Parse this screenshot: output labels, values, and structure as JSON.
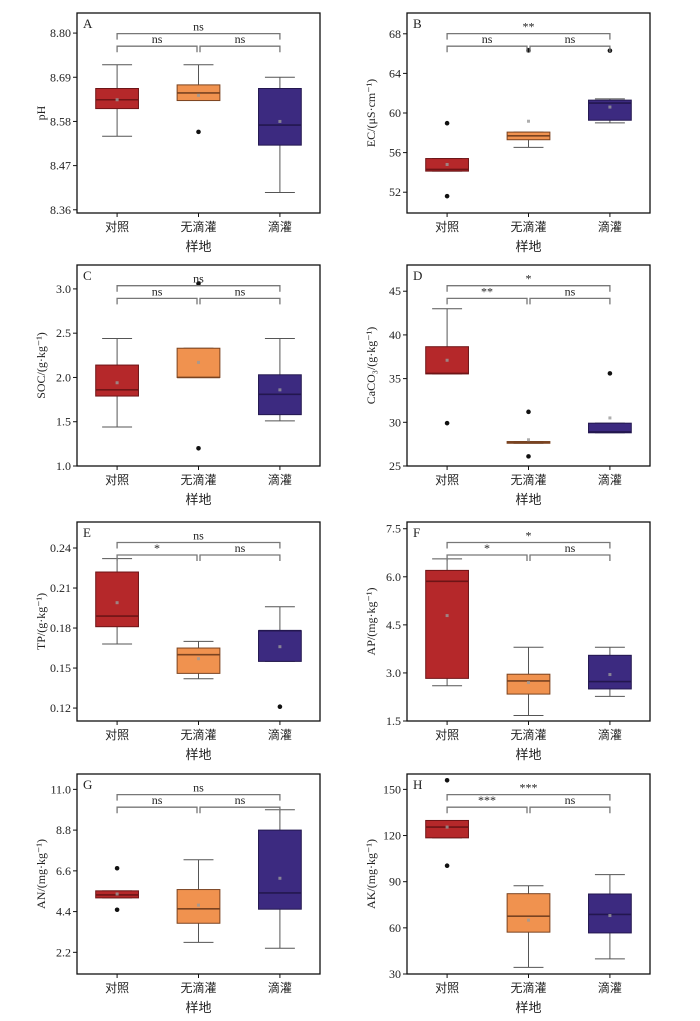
{
  "chart_data": [
    {
      "type": "box",
      "panel_label": "A",
      "ylabel": "pH",
      "xlabel": "样地",
      "categories": [
        "对照",
        "无滴灌",
        "滴灌"
      ],
      "ylim": [
        8.352,
        8.85
      ],
      "yticks": [
        8.36,
        8.47,
        8.58,
        8.69,
        8.8
      ],
      "tick_decimals": 2,
      "boxes": [
        {
          "whisker_low": 8.543,
          "q1": 8.612,
          "median": 8.634,
          "q3": 8.662,
          "whisker_high": 8.721,
          "mean": 8.634,
          "outliers": []
        },
        {
          "whisker_low": 8.632,
          "q1": 8.632,
          "median": 8.651,
          "q3": 8.671,
          "whisker_high": 8.721,
          "mean": 8.645,
          "outliers": [
            8.554
          ]
        },
        {
          "whisker_low": 8.403,
          "q1": 8.521,
          "median": 8.571,
          "q3": 8.662,
          "whisker_high": 8.69,
          "mean": 8.58,
          "outliers": []
        }
      ],
      "comparisons": [
        {
          "pair": [
            1,
            2
          ],
          "label": "ns"
        },
        {
          "pair": [
            2,
            3
          ],
          "label": "ns"
        },
        {
          "pair": [
            1,
            3
          ],
          "label": "ns"
        }
      ]
    },
    {
      "type": "box",
      "panel_label": "B",
      "ylabel": "EC/(μS·cm⁻¹)",
      "xlabel": "样地",
      "categories": [
        "对照",
        "无滴灌",
        "滴灌"
      ],
      "ylim": [
        49.9,
        70.1
      ],
      "yticks": [
        52,
        56,
        60,
        64,
        68
      ],
      "tick_decimals": 0,
      "boxes": [
        {
          "whisker_low": 54.13,
          "q1": 54.13,
          "median": 54.3,
          "q3": 55.4,
          "whisker_high": 55.4,
          "mean": 54.8,
          "outliers": [
            58.97,
            51.6
          ]
        },
        {
          "whisker_low": 56.53,
          "q1": 57.3,
          "median": 57.7,
          "q3": 58.07,
          "whisker_high": 58.07,
          "mean": 59.17,
          "outliers": [
            66.33
          ]
        },
        {
          "whisker_low": 59.0,
          "q1": 59.27,
          "median": 61.0,
          "q3": 61.3,
          "whisker_high": 61.43,
          "mean": 60.6,
          "outliers": [
            66.3
          ]
        }
      ],
      "comparisons": [
        {
          "pair": [
            1,
            2
          ],
          "label": "ns"
        },
        {
          "pair": [
            2,
            3
          ],
          "label": "ns"
        },
        {
          "pair": [
            1,
            3
          ],
          "label": "**"
        }
      ]
    },
    {
      "type": "box",
      "panel_label": "C",
      "ylabel": "SOC/(g·kg⁻¹)",
      "xlabel": "样地",
      "categories": [
        "对照",
        "无滴灌",
        "滴灌"
      ],
      "ylim": [
        1.0,
        3.27
      ],
      "yticks": [
        1.0,
        1.5,
        2.0,
        2.5,
        3.0
      ],
      "tick_decimals": 1,
      "boxes": [
        {
          "whisker_low": 1.44,
          "q1": 1.79,
          "median": 1.86,
          "q3": 2.14,
          "whisker_high": 2.44,
          "mean": 1.94,
          "outliers": []
        },
        {
          "whisker_low": 2.0,
          "q1": 2.0,
          "median": 2.0,
          "q3": 2.33,
          "whisker_high": 2.33,
          "mean": 2.17,
          "outliers": [
            3.06,
            1.2
          ]
        },
        {
          "whisker_low": 1.51,
          "q1": 1.58,
          "median": 1.81,
          "q3": 2.03,
          "whisker_high": 2.44,
          "mean": 1.86,
          "outliers": []
        }
      ],
      "comparisons": [
        {
          "pair": [
            1,
            2
          ],
          "label": "ns"
        },
        {
          "pair": [
            2,
            3
          ],
          "label": "ns"
        },
        {
          "pair": [
            1,
            3
          ],
          "label": "ns"
        }
      ]
    },
    {
      "type": "box",
      "panel_label": "D",
      "ylabel": "CaCO₃/(g·kg⁻¹)",
      "xlabel": "样地",
      "categories": [
        "对照",
        "无滴灌",
        "滴灌"
      ],
      "ylim": [
        25,
        48
      ],
      "yticks": [
        25,
        30,
        35,
        40,
        45
      ],
      "tick_decimals": 0,
      "boxes": [
        {
          "whisker_low": 35.54,
          "q1": 35.54,
          "median": 35.6,
          "q3": 38.65,
          "whisker_high": 43.0,
          "mean": 37.1,
          "outliers": [
            29.9
          ]
        },
        {
          "whisker_low": 27.6,
          "q1": 27.6,
          "median": 27.7,
          "q3": 27.8,
          "whisker_high": 27.8,
          "mean": 28.0,
          "outliers": [
            31.2,
            26.1
          ]
        },
        {
          "whisker_low": 28.8,
          "q1": 28.8,
          "median": 28.9,
          "q3": 29.9,
          "whisker_high": 29.9,
          "mean": 30.5,
          "outliers": [
            35.6
          ]
        }
      ],
      "comparisons": [
        {
          "pair": [
            1,
            2
          ],
          "label": "**"
        },
        {
          "pair": [
            2,
            3
          ],
          "label": "ns"
        },
        {
          "pair": [
            1,
            3
          ],
          "label": "*"
        }
      ]
    },
    {
      "type": "box",
      "panel_label": "E",
      "ylabel": "TP/(g·kg⁻¹)",
      "xlabel": "样地",
      "categories": [
        "对照",
        "无滴灌",
        "滴灌"
      ],
      "ylim": [
        0.1103,
        0.2595
      ],
      "yticks": [
        0.12,
        0.15,
        0.18,
        0.21,
        0.24
      ],
      "tick_decimals": 2,
      "boxes": [
        {
          "whisker_low": 0.168,
          "q1": 0.181,
          "median": 0.189,
          "q3": 0.222,
          "whisker_high": 0.232,
          "mean": 0.199,
          "outliers": []
        },
        {
          "whisker_low": 0.142,
          "q1": 0.146,
          "median": 0.16,
          "q3": 0.165,
          "whisker_high": 0.17,
          "mean": 0.157,
          "outliers": []
        },
        {
          "whisker_low": 0.155,
          "q1": 0.155,
          "median": 0.178,
          "q3": 0.178,
          "whisker_high": 0.196,
          "mean": 0.166,
          "outliers": [
            0.121
          ]
        }
      ],
      "comparisons": [
        {
          "pair": [
            1,
            2
          ],
          "label": "*"
        },
        {
          "pair": [
            2,
            3
          ],
          "label": "ns"
        },
        {
          "pair": [
            1,
            3
          ],
          "label": "ns"
        }
      ]
    },
    {
      "type": "box",
      "panel_label": "F",
      "ylabel": "AP/(mg·kg⁻¹)",
      "xlabel": "样地",
      "categories": [
        "对照",
        "无滴灌",
        "滴灌"
      ],
      "ylim": [
        1.5,
        7.71
      ],
      "yticks": [
        1.5,
        3.0,
        4.5,
        6.0,
        7.5
      ],
      "tick_decimals": 1,
      "boxes": [
        {
          "whisker_low": 2.6,
          "q1": 2.83,
          "median": 5.86,
          "q3": 6.2,
          "whisker_high": 6.56,
          "mean": 4.79,
          "outliers": []
        },
        {
          "whisker_low": 1.67,
          "q1": 2.34,
          "median": 2.75,
          "q3": 2.96,
          "whisker_high": 3.8,
          "mean": 2.7,
          "outliers": []
        },
        {
          "whisker_low": 2.27,
          "q1": 2.5,
          "median": 2.73,
          "q3": 3.55,
          "whisker_high": 3.8,
          "mean": 2.95,
          "outliers": []
        }
      ],
      "comparisons": [
        {
          "pair": [
            1,
            2
          ],
          "label": "*"
        },
        {
          "pair": [
            2,
            3
          ],
          "label": "ns"
        },
        {
          "pair": [
            1,
            3
          ],
          "label": "*"
        }
      ]
    },
    {
      "type": "box",
      "panel_label": "G",
      "ylabel": "AN/(mg·kg⁻¹)",
      "xlabel": "样地",
      "categories": [
        "对照",
        "无滴灌",
        "滴灌"
      ],
      "ylim": [
        1.03,
        11.83
      ],
      "yticks": [
        2.2,
        4.4,
        6.6,
        8.8,
        11.0
      ],
      "tick_decimals": 1,
      "boxes": [
        {
          "whisker_low": 5.14,
          "q1": 5.14,
          "median": 5.3,
          "q3": 5.52,
          "whisker_high": 5.52,
          "mean": 5.35,
          "outliers": [
            6.74,
            4.5
          ]
        },
        {
          "whisker_low": 2.74,
          "q1": 3.77,
          "median": 4.55,
          "q3": 5.59,
          "whisker_high": 7.2,
          "mean": 4.75,
          "outliers": []
        },
        {
          "whisker_low": 2.42,
          "q1": 4.53,
          "median": 5.41,
          "q3": 8.8,
          "whisker_high": 9.9,
          "mean": 6.2,
          "outliers": []
        }
      ],
      "comparisons": [
        {
          "pair": [
            1,
            2
          ],
          "label": "ns"
        },
        {
          "pair": [
            2,
            3
          ],
          "label": "ns"
        },
        {
          "pair": [
            1,
            3
          ],
          "label": "ns"
        }
      ]
    },
    {
      "type": "box",
      "panel_label": "H",
      "ylabel": "AK/(mg·kg⁻¹)",
      "xlabel": "样地",
      "categories": [
        "对照",
        "无滴灌",
        "滴灌"
      ],
      "ylim": [
        30,
        160
      ],
      "yticks": [
        30,
        60,
        90,
        120,
        150
      ],
      "tick_decimals": 0,
      "boxes": [
        {
          "whisker_low": 118.5,
          "q1": 118.5,
          "median": 125.5,
          "q3": 129.8,
          "whisker_high": 129.8,
          "mean": 125.5,
          "outliers": [
            155.9,
            100.4
          ]
        },
        {
          "whisker_low": 34.3,
          "q1": 57.2,
          "median": 67.6,
          "q3": 82.2,
          "whisker_high": 87.4,
          "mean": 65,
          "outliers": []
        },
        {
          "whisker_low": 39.8,
          "q1": 56.7,
          "median": 68.7,
          "q3": 82,
          "whisker_high": 94.6,
          "mean": 68,
          "outliers": []
        }
      ],
      "comparisons": [
        {
          "pair": [
            1,
            2
          ],
          "label": "***"
        },
        {
          "pair": [
            2,
            3
          ],
          "label": "ns"
        },
        {
          "pair": [
            1,
            3
          ],
          "label": "***"
        }
      ]
    }
  ],
  "colors": {
    "对照": "#b5282a",
    "无滴灌": "#f0924f",
    "滴灌": "#3c2a80",
    "median_对照": "#6e1416",
    "median_无滴灌": "#7a4320",
    "median_滴灌": "#23174f",
    "mean_marker": "#9a9a9a",
    "bracket": "#777777",
    "frame": "#111111"
  }
}
